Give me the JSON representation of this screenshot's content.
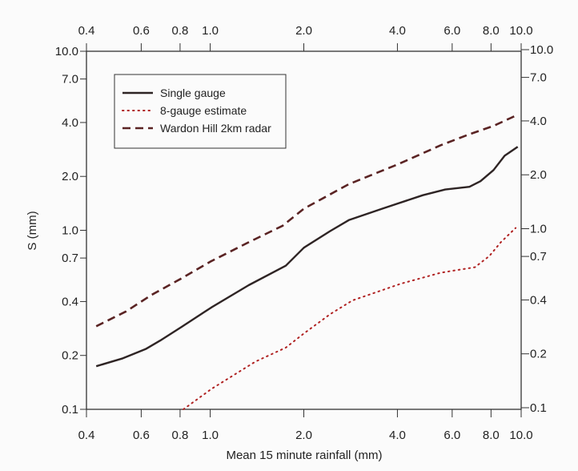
{
  "chart_data": {
    "type": "line",
    "title": "",
    "xlabel": "Mean 15 minute rainfall (mm)",
    "ylabel": "S (mm)",
    "xscale": "log",
    "yscale": "log",
    "xlim": [
      0.4,
      10.0
    ],
    "ylim": [
      0.1,
      10.0
    ],
    "grid": false,
    "legend_placement": "top-left",
    "x_ticks": [
      "0.4",
      "0.6",
      "0.8",
      "1.0",
      "2.0",
      "4.0",
      "6.0",
      "8.0",
      "10.0"
    ],
    "x_tick_values": [
      0.4,
      0.6,
      0.8,
      1.0,
      2.0,
      4.0,
      6.0,
      8.0,
      10.0
    ],
    "y_ticks": [
      "0.1",
      "0.2",
      "0.4",
      "0.7",
      "1.0",
      "2.0",
      "4.0",
      "7.0",
      "10.0"
    ],
    "y_tick_values": [
      0.1,
      0.2,
      0.4,
      0.7,
      1.0,
      2.0,
      4.0,
      7.0,
      10.0
    ],
    "series": [
      {
        "name": "Single gauge",
        "style": "solid",
        "color": "#2e2424",
        "x": [
          0.43,
          0.52,
          0.62,
          0.69,
          0.81,
          1.01,
          1.33,
          1.75,
          2.0,
          2.43,
          2.79,
          3.57,
          4.83,
          5.7,
          6.82,
          7.4,
          8.15,
          8.85,
          9.75
        ],
        "y": [
          0.174,
          0.192,
          0.217,
          0.242,
          0.289,
          0.371,
          0.494,
          0.634,
          0.799,
          0.99,
          1.14,
          1.32,
          1.57,
          1.69,
          1.75,
          1.88,
          2.17,
          2.61,
          2.93
        ]
      },
      {
        "name": "8-gauge estimate",
        "style": "dotted",
        "color": "#b02222",
        "x": [
          0.82,
          1.01,
          1.4,
          1.75,
          2.0,
          2.43,
          2.87,
          4.1,
          5.52,
          7.1,
          7.9,
          8.6,
          9.6
        ],
        "y": [
          0.1,
          0.13,
          0.185,
          0.221,
          0.265,
          0.34,
          0.406,
          0.503,
          0.58,
          0.622,
          0.718,
          0.858,
          1.03
        ]
      },
      {
        "name": "Wardon Hill 2km radar",
        "style": "dashed",
        "color": "#5a2323",
        "x": [
          0.43,
          0.536,
          0.648,
          0.811,
          1.0,
          1.33,
          1.71,
          2.0,
          2.79,
          4.0,
          5.52,
          6.82,
          8.15,
          9.75
        ],
        "y": [
          0.291,
          0.352,
          0.436,
          0.54,
          0.668,
          0.858,
          1.06,
          1.32,
          1.81,
          2.33,
          2.99,
          3.44,
          3.83,
          4.42
        ]
      }
    ]
  }
}
